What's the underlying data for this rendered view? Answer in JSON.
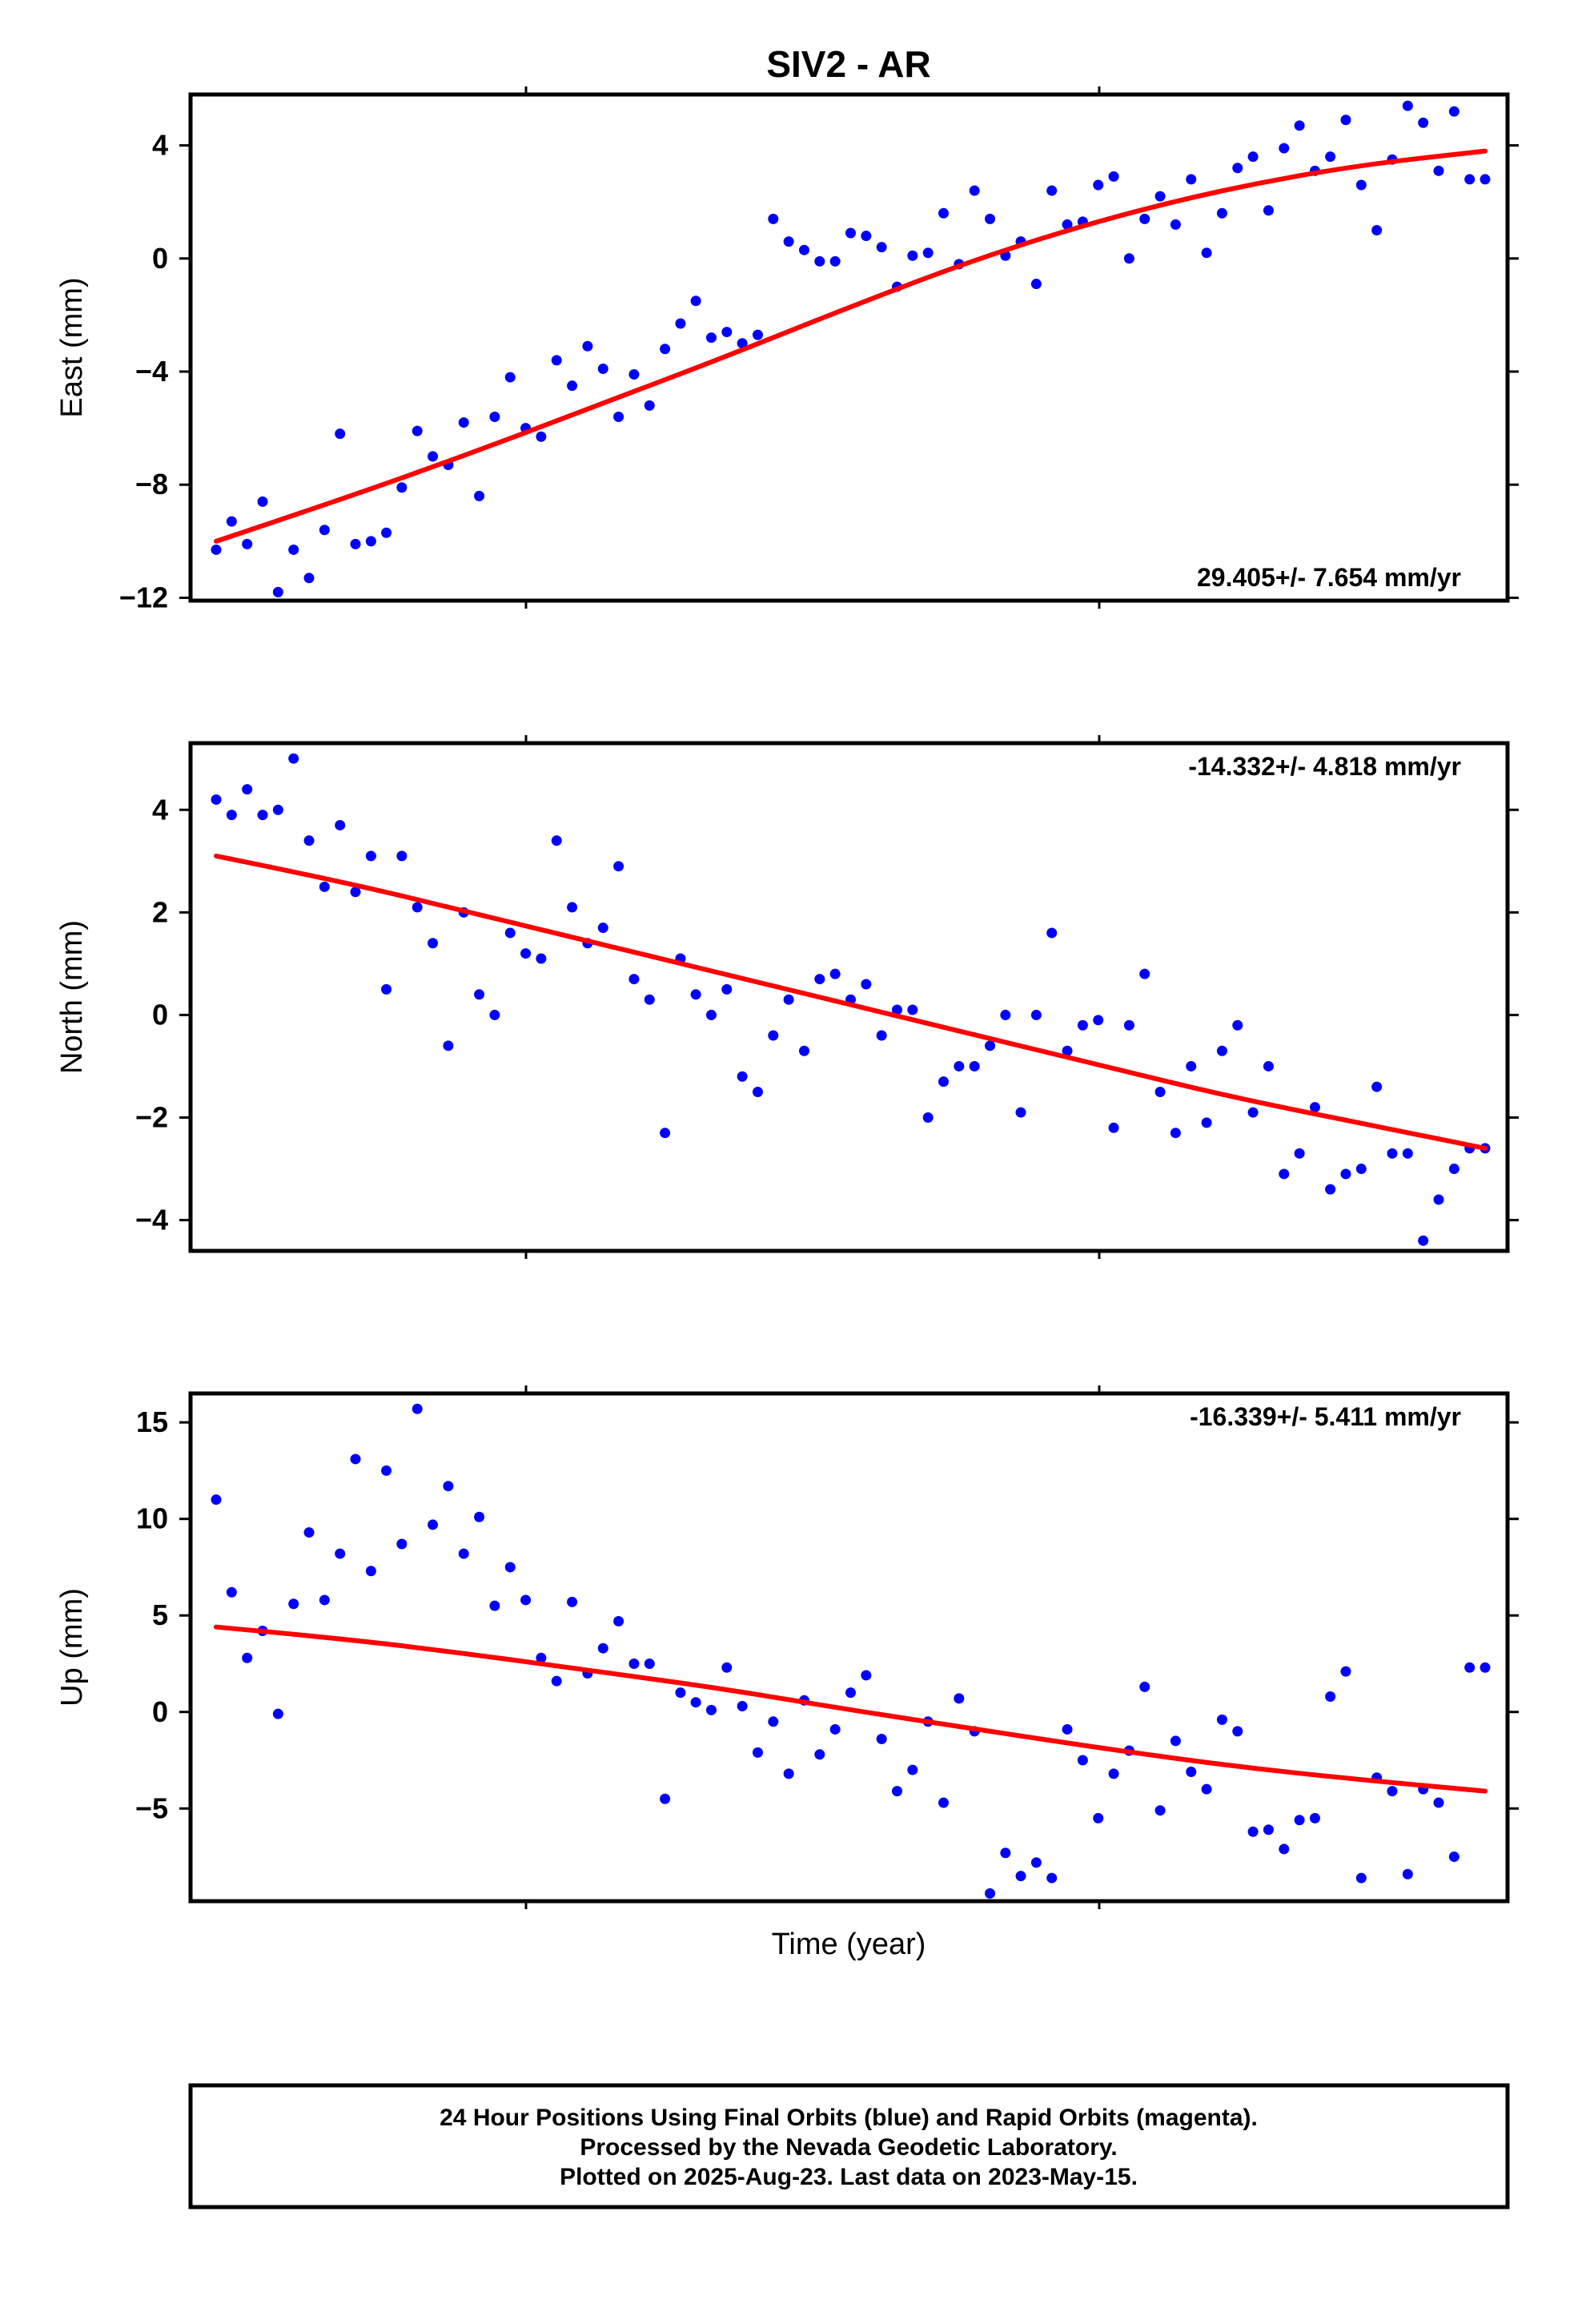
{
  "title": "SIV2 - AR",
  "x_axis_label": "Time (year)",
  "colors": {
    "points": "#0000ff",
    "fit": "#ff0000",
    "frame": "#000000"
  },
  "footer": {
    "line1": "24 Hour Positions Using Final Orbits (blue) and Rapid Orbits (magenta).",
    "line2": "Processed by the Nevada Geodetic Laboratory.",
    "line3": "Plotted on 2025-Aug-23. Last data on 2023-May-15."
  },
  "chart_data": [
    {
      "type": "scatter",
      "ylabel": "East (mm)",
      "rate_label": "29.405+/- 7.654 mm/yr",
      "rate_position": "bottom-right",
      "ylim": [
        -12.1,
        5.8
      ],
      "yticks": [
        4,
        0,
        -4,
        -8,
        -12
      ],
      "ytick_labels": [
        "4",
        "0",
        "−4",
        "−8",
        "−12"
      ],
      "x": [
        0.0,
        0.0122,
        0.0244,
        0.0366,
        0.0488,
        0.061,
        0.0732,
        0.0854,
        0.0976,
        0.1098,
        0.122,
        0.1341,
        0.1463,
        0.1585,
        0.1707,
        0.1829,
        0.1951,
        0.2073,
        0.2195,
        0.2317,
        0.2439,
        0.2561,
        0.2683,
        0.2805,
        0.2927,
        0.3049,
        0.3171,
        0.3293,
        0.3415,
        0.3537,
        0.3659,
        0.378,
        0.3902,
        0.4024,
        0.4146,
        0.4268,
        0.439,
        0.4512,
        0.4634,
        0.4756,
        0.4878,
        0.5,
        0.5122,
        0.5244,
        0.5366,
        0.5488,
        0.561,
        0.5732,
        0.5854,
        0.5976,
        0.6098,
        0.622,
        0.6341,
        0.6463,
        0.6585,
        0.6707,
        0.6829,
        0.6951,
        0.7073,
        0.7195,
        0.7317,
        0.7439,
        0.7561,
        0.7683,
        0.7805,
        0.7927,
        0.8049,
        0.8171,
        0.8293,
        0.8415,
        0.8537,
        0.8659,
        0.878,
        0.8902,
        0.9024,
        0.9146,
        0.9268,
        0.939,
        0.9512,
        0.9634,
        0.9756,
        0.9878,
        1.0
      ],
      "values": [
        -10.3,
        -9.3,
        -10.1,
        -8.6,
        -11.8,
        -10.3,
        -11.3,
        -9.6,
        -6.2,
        -10.1,
        -10.0,
        -9.7,
        -8.1,
        -6.1,
        -7.0,
        -7.3,
        -5.8,
        -8.4,
        -5.6,
        -4.2,
        -6.0,
        -6.3,
        -3.6,
        -4.5,
        -3.1,
        -3.9,
        -5.6,
        -4.1,
        -5.2,
        -3.2,
        -2.3,
        -1.5,
        -2.8,
        -2.6,
        -3.0,
        -2.7,
        1.4,
        0.6,
        0.3,
        -0.1,
        -0.1,
        0.9,
        0.8,
        0.4,
        -1.0,
        0.1,
        0.2,
        1.6,
        -0.2,
        2.4,
        1.4,
        0.1,
        0.6,
        -0.9,
        2.4,
        1.2,
        1.3,
        2.6,
        2.9,
        0.0,
        1.4,
        2.2,
        1.2,
        2.8,
        0.2,
        1.6,
        3.2,
        3.6,
        1.7,
        3.9,
        4.7,
        3.1,
        3.6,
        4.9,
        2.6,
        1.0,
        3.5,
        5.4,
        4.8,
        3.1,
        5.2,
        2.8,
        2.8
      ],
      "fit": {
        "x": [
          0.0,
          0.1,
          0.2,
          0.3,
          0.4,
          0.5,
          0.6,
          0.7,
          0.8,
          0.9,
          1.0
        ],
        "values": [
          -10.0,
          -8.5,
          -6.9,
          -5.2,
          -3.5,
          -1.7,
          0.0,
          1.4,
          2.5,
          3.3,
          3.8
        ]
      }
    },
    {
      "type": "scatter",
      "ylabel": "North (mm)",
      "rate_label": "-14.332+/- 4.818 mm/yr",
      "rate_position": "top-right",
      "ylim": [
        -4.6,
        5.3
      ],
      "yticks": [
        4,
        2,
        0,
        -2,
        -4
      ],
      "ytick_labels": [
        "4",
        "2",
        "0",
        "−2",
        "−4"
      ],
      "x": [
        0.0,
        0.0122,
        0.0244,
        0.0366,
        0.0488,
        0.061,
        0.0732,
        0.0854,
        0.0976,
        0.1098,
        0.122,
        0.1341,
        0.1463,
        0.1585,
        0.1707,
        0.1829,
        0.1951,
        0.2073,
        0.2195,
        0.2317,
        0.2439,
        0.2561,
        0.2683,
        0.2805,
        0.2927,
        0.3049,
        0.3171,
        0.3293,
        0.3415,
        0.3537,
        0.3659,
        0.378,
        0.3902,
        0.4024,
        0.4146,
        0.4268,
        0.439,
        0.4512,
        0.4634,
        0.4756,
        0.4878,
        0.5,
        0.5122,
        0.5244,
        0.5366,
        0.5488,
        0.561,
        0.5732,
        0.5854,
        0.5976,
        0.6098,
        0.622,
        0.6341,
        0.6463,
        0.6585,
        0.6707,
        0.6829,
        0.6951,
        0.7073,
        0.7195,
        0.7317,
        0.7439,
        0.7561,
        0.7683,
        0.7805,
        0.7927,
        0.8049,
        0.8171,
        0.8293,
        0.8415,
        0.8537,
        0.8659,
        0.878,
        0.8902,
        0.9024,
        0.9146,
        0.9268,
        0.939,
        0.9512,
        0.9634,
        0.9756,
        0.9878,
        1.0
      ],
      "values": [
        4.2,
        3.9,
        4.4,
        3.9,
        4.0,
        5.0,
        3.4,
        2.5,
        3.7,
        2.4,
        3.1,
        0.5,
        3.1,
        2.1,
        1.4,
        -0.6,
        2.0,
        0.4,
        0.0,
        1.6,
        1.2,
        1.1,
        3.4,
        2.1,
        1.4,
        1.7,
        2.9,
        0.7,
        0.3,
        -2.3,
        1.1,
        0.4,
        0.0,
        0.5,
        -1.2,
        -1.5,
        -0.4,
        0.3,
        -0.7,
        0.7,
        0.8,
        0.3,
        0.6,
        -0.4,
        0.1,
        0.1,
        -2.0,
        -1.3,
        -1.0,
        -1.0,
        -0.6,
        0.0,
        -1.9,
        0.0,
        1.6,
        -0.7,
        -0.2,
        -0.1,
        -2.2,
        -0.2,
        0.8,
        -1.5,
        -2.3,
        -1.0,
        -2.1,
        -0.7,
        -0.2,
        -1.9,
        -1.0,
        -3.1,
        -2.7,
        -1.8,
        -3.4,
        -3.1,
        -3.0,
        -1.4,
        -2.7,
        -2.7,
        -4.4,
        -3.6,
        -3.0,
        -2.6,
        -2.6
      ],
      "fit": {
        "x": [
          0.0,
          0.1,
          0.2,
          0.3,
          0.4,
          0.5,
          0.6,
          0.7,
          0.8,
          0.9,
          1.0
        ],
        "values": [
          3.1,
          2.6,
          2.0,
          1.4,
          0.8,
          0.2,
          -0.4,
          -1.0,
          -1.6,
          -2.1,
          -2.6
        ]
      }
    },
    {
      "type": "scatter",
      "ylabel": "Up (mm)",
      "rate_label": "-16.339+/- 5.411 mm/yr",
      "rate_position": "top-right",
      "ylim": [
        -9.8,
        16.5
      ],
      "yticks": [
        15,
        10,
        5,
        0,
        -5
      ],
      "ytick_labels": [
        "15",
        "10",
        "5",
        "0",
        "−5"
      ],
      "x": [
        0.0,
        0.0122,
        0.0244,
        0.0366,
        0.0488,
        0.061,
        0.0732,
        0.0854,
        0.0976,
        0.1098,
        0.122,
        0.1341,
        0.1463,
        0.1585,
        0.1707,
        0.1829,
        0.1951,
        0.2073,
        0.2195,
        0.2317,
        0.2439,
        0.2561,
        0.2683,
        0.2805,
        0.2927,
        0.3049,
        0.3171,
        0.3293,
        0.3415,
        0.3537,
        0.3659,
        0.378,
        0.3902,
        0.4024,
        0.4146,
        0.4268,
        0.439,
        0.4512,
        0.4634,
        0.4756,
        0.4878,
        0.5,
        0.5122,
        0.5244,
        0.5366,
        0.5488,
        0.561,
        0.5732,
        0.5854,
        0.5976,
        0.6098,
        0.622,
        0.6341,
        0.6463,
        0.6585,
        0.6707,
        0.6829,
        0.6951,
        0.7073,
        0.7195,
        0.7317,
        0.7439,
        0.7561,
        0.7683,
        0.7805,
        0.7927,
        0.8049,
        0.8171,
        0.8293,
        0.8415,
        0.8537,
        0.8659,
        0.878,
        0.8902,
        0.9024,
        0.9146,
        0.9268,
        0.939,
        0.9512,
        0.9634,
        0.9756,
        0.9878,
        1.0
      ],
      "values": [
        11.0,
        6.2,
        2.8,
        4.2,
        -0.1,
        5.6,
        9.3,
        5.8,
        8.2,
        13.1,
        7.3,
        12.5,
        8.7,
        15.7,
        9.7,
        11.7,
        8.2,
        10.1,
        5.5,
        7.5,
        5.8,
        2.8,
        1.6,
        5.7,
        2.0,
        3.3,
        4.7,
        2.5,
        2.5,
        -4.5,
        1.0,
        0.5,
        0.1,
        2.3,
        0.3,
        -2.1,
        -0.5,
        -3.2,
        0.6,
        -2.2,
        -0.9,
        1.0,
        1.9,
        -1.4,
        -4.1,
        -3.0,
        -0.5,
        -4.7,
        0.7,
        -1.0,
        -9.4,
        -7.3,
        -8.5,
        -7.8,
        -8.6,
        -0.9,
        -2.5,
        -5.5,
        -3.2,
        -2.0,
        1.3,
        -5.1,
        -1.5,
        -3.1,
        -4.0,
        -0.4,
        -1.0,
        -6.2,
        -6.1,
        -7.1,
        -5.6,
        -5.5,
        0.8,
        2.1,
        -8.6,
        -3.4,
        -4.1,
        -8.4,
        -4.0,
        -4.7,
        -7.5,
        2.3,
        2.3
      ],
      "fit": {
        "x": [
          0.0,
          0.1,
          0.2,
          0.3,
          0.4,
          0.5,
          0.6,
          0.7,
          0.8,
          0.9,
          1.0
        ],
        "values": [
          4.4,
          3.8,
          3.0,
          2.1,
          1.2,
          0.1,
          -0.9,
          -1.9,
          -2.8,
          -3.5,
          -4.1
        ]
      }
    }
  ]
}
